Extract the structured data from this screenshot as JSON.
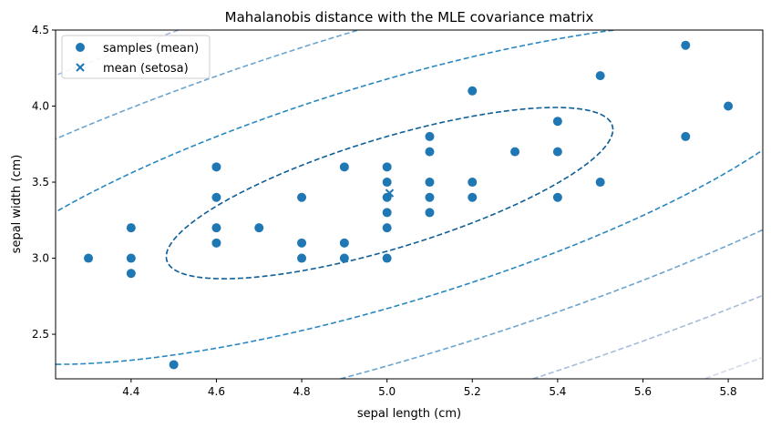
{
  "chart_data": {
    "type": "scatter",
    "title": "Mahalanobis distance with the MLE covariance matrix",
    "xlabel": "sepal length (cm)",
    "ylabel": "sepal width (cm)",
    "xlim": [
      4.223,
      5.881
    ],
    "ylim": [
      2.207,
      4.5
    ],
    "xticks": [
      4.4,
      4.6,
      4.8,
      5.0,
      5.2,
      5.4,
      5.6,
      5.8
    ],
    "xtick_labels": [
      "4.4",
      "4.6",
      "4.8",
      "5.0",
      "5.2",
      "5.4",
      "5.6",
      "5.8"
    ],
    "yticks": [
      2.5,
      3.0,
      3.5,
      4.0,
      4.5
    ],
    "ytick_labels": [
      "2.5",
      "3.0",
      "3.5",
      "4.0",
      "4.5"
    ],
    "grid": false,
    "legend": {
      "placement": "top-left",
      "entries": [
        "samples (mean)",
        "mean (setosa)"
      ]
    },
    "series": [
      {
        "name": "samples (mean)",
        "marker": "circle",
        "color": "#1f77b4",
        "points": [
          [
            4.3,
            3.0
          ],
          [
            4.4,
            3.2
          ],
          [
            4.4,
            3.0
          ],
          [
            4.4,
            2.9
          ],
          [
            4.5,
            2.3
          ],
          [
            4.6,
            3.6
          ],
          [
            4.6,
            3.4
          ],
          [
            4.6,
            3.2
          ],
          [
            4.6,
            3.1
          ],
          [
            4.7,
            3.2
          ],
          [
            4.8,
            3.4
          ],
          [
            4.8,
            3.1
          ],
          [
            4.8,
            3.0
          ],
          [
            4.9,
            3.6
          ],
          [
            4.9,
            3.1
          ],
          [
            4.9,
            3.0
          ],
          [
            5.0,
            3.6
          ],
          [
            5.0,
            3.5
          ],
          [
            5.0,
            3.4
          ],
          [
            5.0,
            3.3
          ],
          [
            5.0,
            3.2
          ],
          [
            5.0,
            3.0
          ],
          [
            5.1,
            3.8
          ],
          [
            5.1,
            3.7
          ],
          [
            5.1,
            3.5
          ],
          [
            5.1,
            3.4
          ],
          [
            5.1,
            3.3
          ],
          [
            5.2,
            4.1
          ],
          [
            5.2,
            3.5
          ],
          [
            5.2,
            3.4
          ],
          [
            5.3,
            3.7
          ],
          [
            5.4,
            3.9
          ],
          [
            5.4,
            3.7
          ],
          [
            5.4,
            3.4
          ],
          [
            5.5,
            4.2
          ],
          [
            5.5,
            3.5
          ],
          [
            5.7,
            4.4
          ],
          [
            5.7,
            3.8
          ],
          [
            5.8,
            4.0
          ]
        ]
      },
      {
        "name": "mean (setosa)",
        "marker": "x",
        "color": "#1f77b4",
        "points": [
          [
            5.006,
            3.428
          ]
        ]
      }
    ],
    "contours": {
      "type": "mahalanobis",
      "center": [
        5.006,
        3.428
      ],
      "covariance": [
        [
          0.1218,
          0.0972
        ],
        [
          0.0972,
          0.1408
        ]
      ],
      "levels": [
        1.5,
        3.0,
        4.5,
        6.0,
        7.5,
        9.0
      ],
      "colors": [
        "#0e5f97",
        "#2887c0",
        "#6ba5cf",
        "#a7bcdb",
        "#d4d9ea",
        "#efeff6"
      ],
      "linestyle": "dashed"
    }
  }
}
